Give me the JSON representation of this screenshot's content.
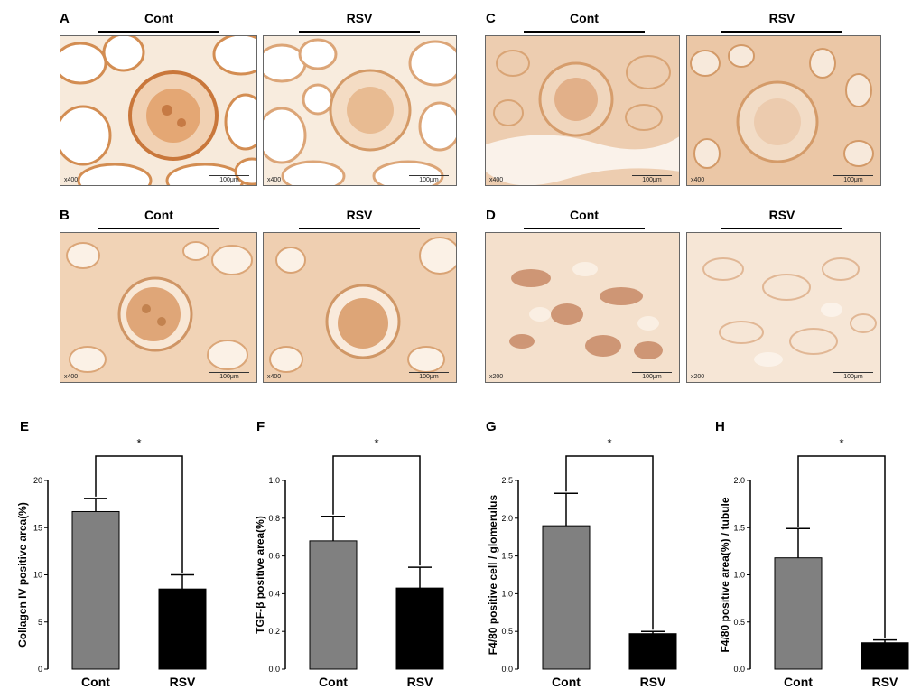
{
  "micrographs": [
    {
      "panel": "A",
      "groups": [
        "Cont",
        "RSV"
      ],
      "magnification": "x400",
      "scale_bar": "100μm",
      "stain": [
        "#dca172",
        "#e3b285"
      ]
    },
    {
      "panel": "B",
      "groups": [
        "Cont",
        "RSV"
      ],
      "magnification": "x400",
      "scale_bar": "100μm",
      "stain": [
        "#dfac7e",
        "#ddaa7c"
      ]
    },
    {
      "panel": "C",
      "groups": [
        "Cont",
        "RSV"
      ],
      "magnification": "x400",
      "scale_bar": "100μm",
      "stain": [
        "#e7c09e",
        "#e6bc98"
      ]
    },
    {
      "panel": "D",
      "groups": [
        "Cont",
        "RSV"
      ],
      "magnification": "x200",
      "scale_bar": "100μm",
      "stain": [
        "#e9c8ac",
        "#efd8c2"
      ]
    }
  ],
  "chart_data": [
    {
      "panel": "E",
      "type": "bar",
      "categories": [
        "Cont",
        "RSV"
      ],
      "values": [
        16.7,
        8.5
      ],
      "errors": [
        1.4,
        1.5
      ],
      "colors": [
        "#808080",
        "#000000"
      ],
      "ylabel": "Collagen IV positive area(%)",
      "ylim": [
        0,
        20
      ],
      "yticks": [
        "0",
        "5",
        "10",
        "15",
        "20"
      ],
      "significance": "*"
    },
    {
      "panel": "F",
      "type": "bar",
      "categories": [
        "Cont",
        "RSV"
      ],
      "values": [
        0.68,
        0.43
      ],
      "errors": [
        0.13,
        0.11
      ],
      "colors": [
        "#808080",
        "#000000"
      ],
      "ylabel": "TGF-β positive area(%)",
      "ylim": [
        0,
        1.0
      ],
      "yticks": [
        "0.0",
        "0.2",
        "0.4",
        "0.6",
        "0.8",
        "1.0"
      ],
      "significance": "*"
    },
    {
      "panel": "G",
      "type": "bar",
      "categories": [
        "Cont",
        "RSV"
      ],
      "values": [
        1.9,
        0.47
      ],
      "errors": [
        0.43,
        0.03
      ],
      "colors": [
        "#808080",
        "#000000"
      ],
      "ylabel": "F4/80 positive cell / glomerulus",
      "ylim": [
        0,
        2.5
      ],
      "yticks": [
        "0.0",
        "0.5",
        "1.0",
        "1.5",
        "2.0",
        "2.5"
      ],
      "significance": "*"
    },
    {
      "panel": "H",
      "type": "bar",
      "categories": [
        "Cont",
        "RSV"
      ],
      "values": [
        1.18,
        0.28
      ],
      "errors": [
        0.31,
        0.03
      ],
      "colors": [
        "#808080",
        "#000000"
      ],
      "ylabel": "F4/80 positive area(%) / tubule",
      "ylim": [
        0,
        2.0
      ],
      "yticks": [
        "0.0",
        "0.5",
        "1.0",
        "1.5",
        "2.0"
      ],
      "significance": "*"
    }
  ]
}
